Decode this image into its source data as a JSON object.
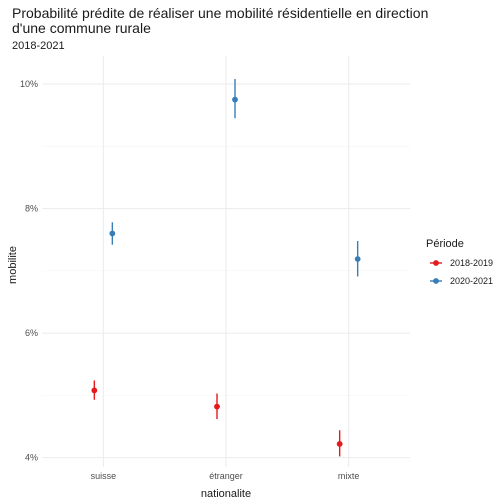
{
  "chart_data": {
    "type": "scatter",
    "title_line1": "Probabilité prédite de réaliser une mobilité résidentielle en direction",
    "title_line2": "d'une commune rurale",
    "subtitle": "2018-2021",
    "xlabel": "nationalite",
    "ylabel": "mobilite",
    "categories": [
      "suisse",
      "étranger",
      "mixte"
    ],
    "y_ticks": [
      4,
      6,
      8,
      10
    ],
    "y_tick_labels": [
      "4%",
      "6%",
      "8%",
      "10%"
    ],
    "ylim": [
      3.85,
      10.45
    ],
    "grid": true,
    "legend": {
      "title": "Période",
      "position": "right"
    },
    "colors": {
      "2018-2019": "#e41a1c",
      "2020-2021": "#377eb8"
    },
    "series": [
      {
        "name": "2018-2019",
        "values": [
          5.08,
          4.82,
          4.22
        ],
        "lower": [
          4.93,
          4.62,
          4.02
        ],
        "upper": [
          5.24,
          5.03,
          4.44
        ]
      },
      {
        "name": "2020-2021",
        "values": [
          7.6,
          9.75,
          7.19
        ],
        "lower": [
          7.42,
          9.45,
          6.91
        ],
        "upper": [
          7.78,
          10.08,
          7.48
        ]
      }
    ]
  }
}
